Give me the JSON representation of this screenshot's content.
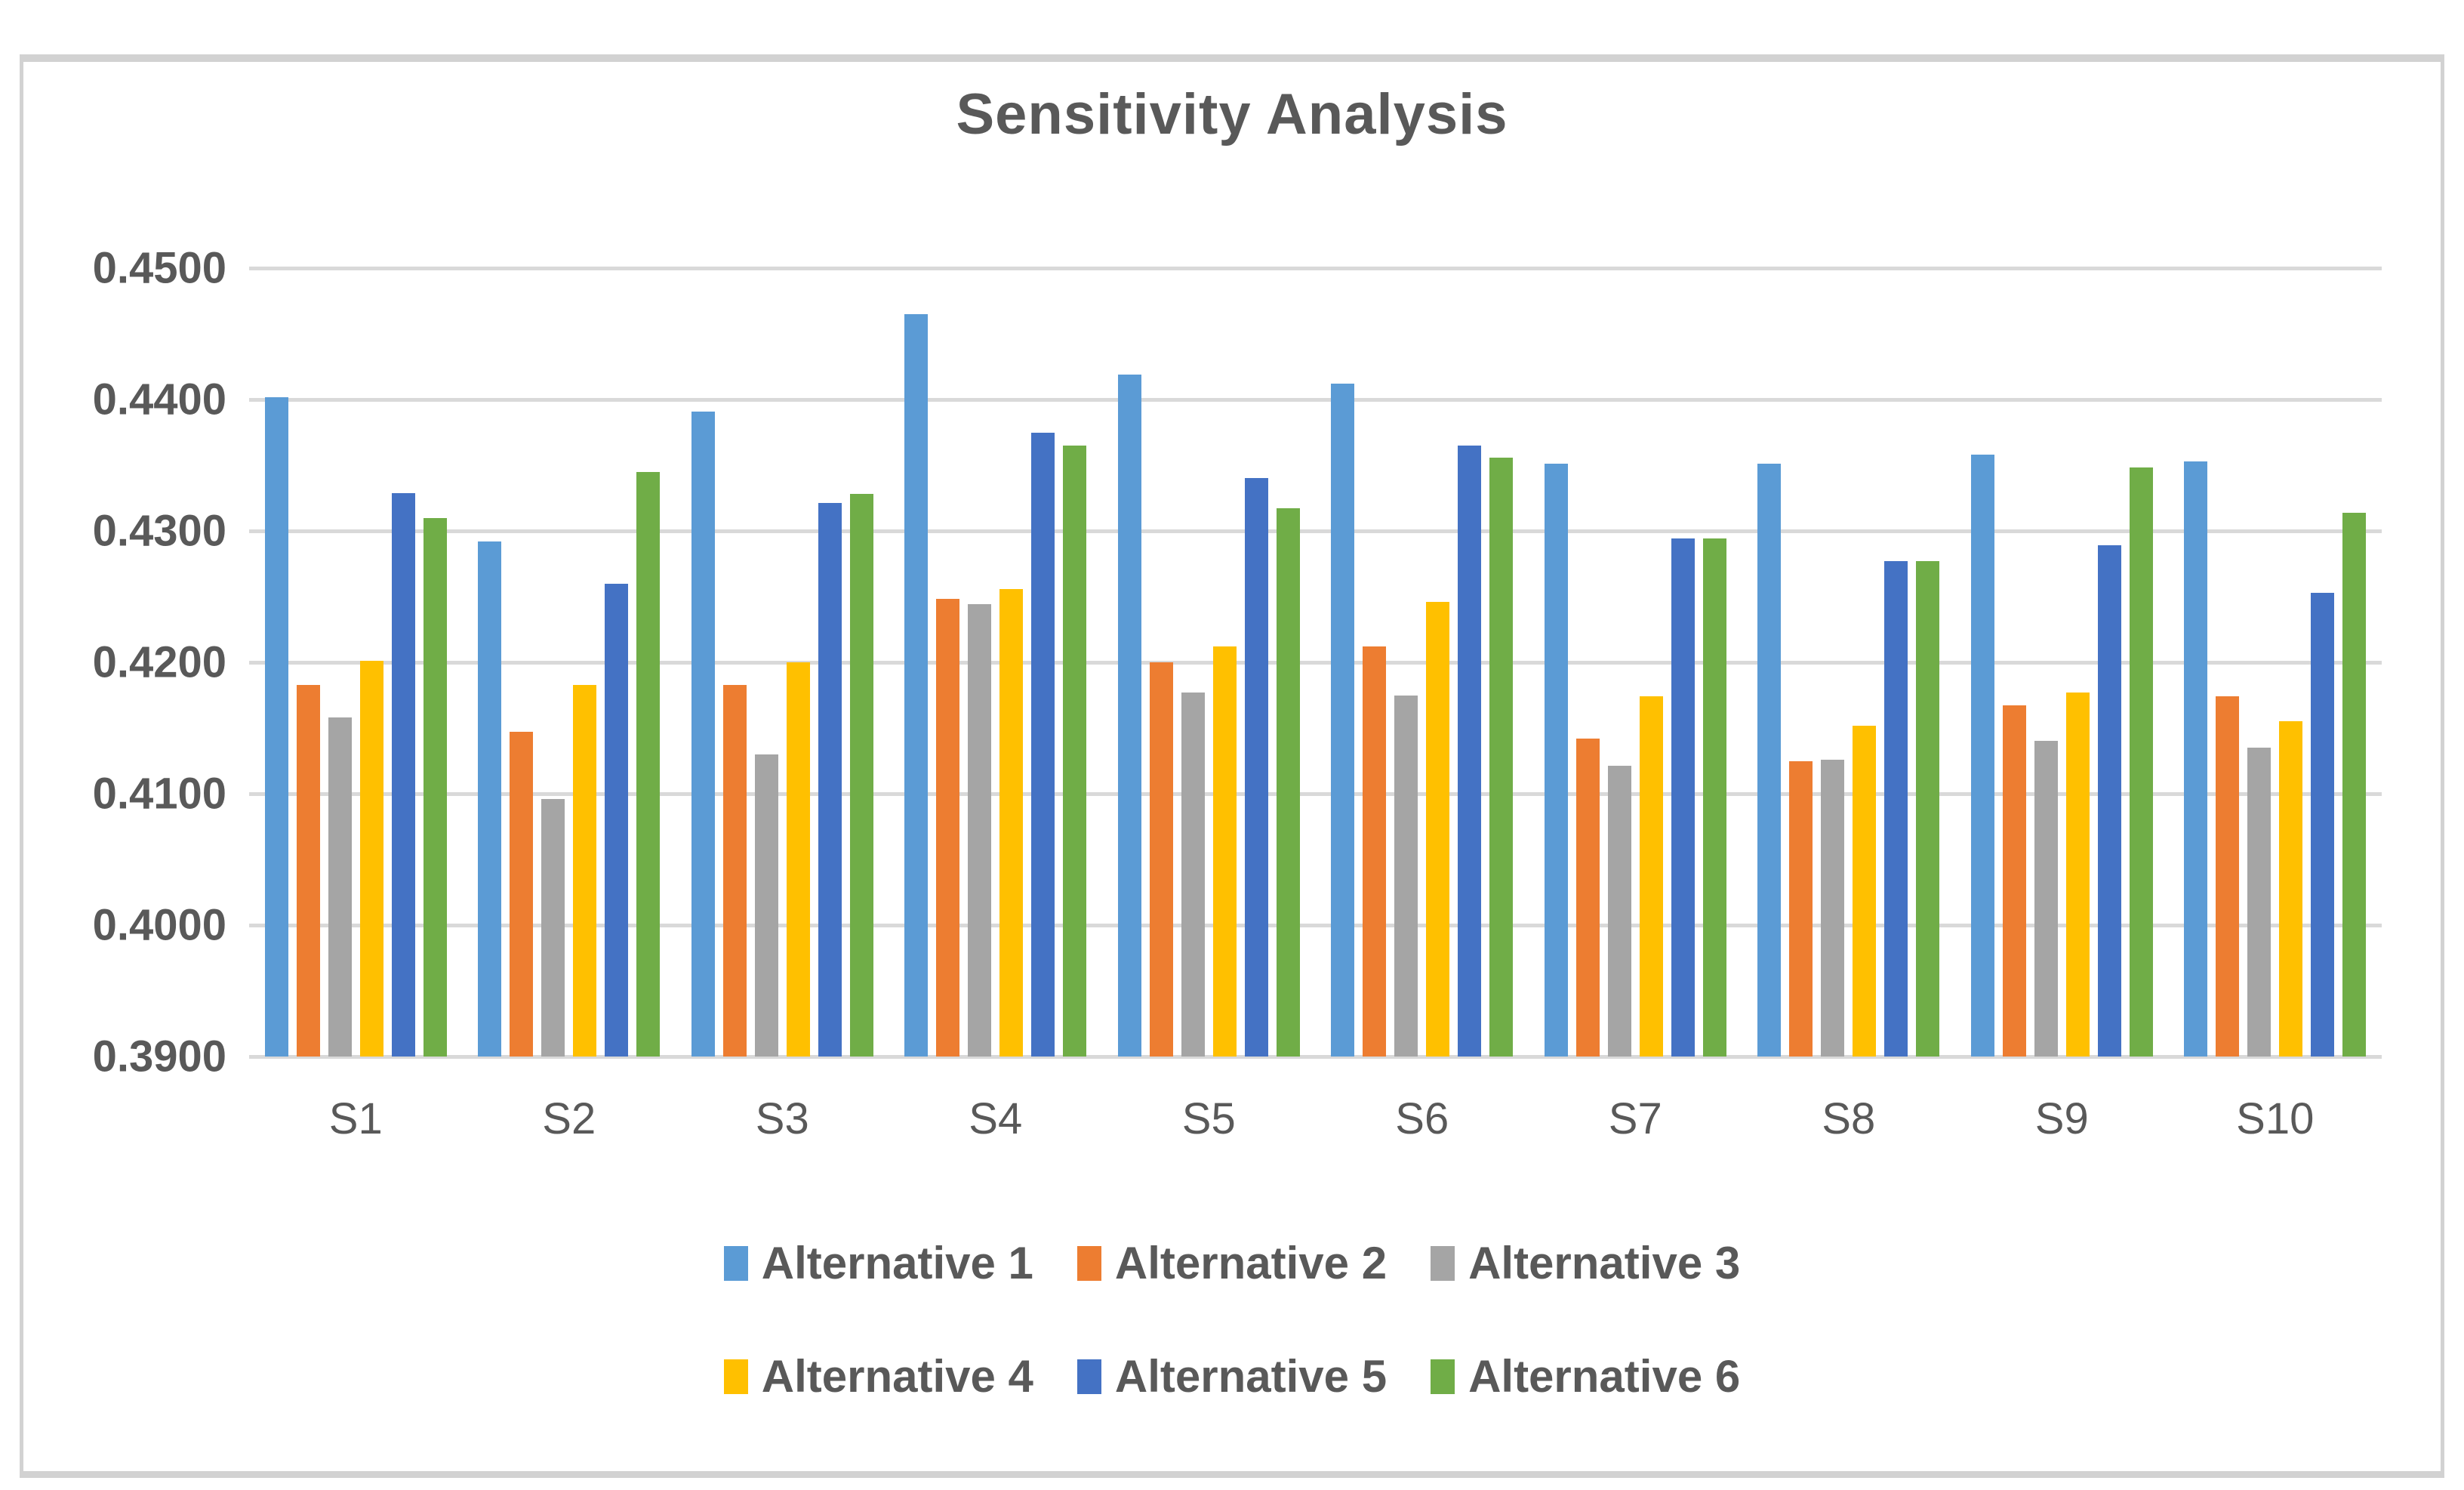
{
  "figure": {
    "title": "Sensitivity Analysis"
  },
  "chart_data": {
    "type": "bar",
    "title": "Sensitivity Analysis",
    "xlabel": "",
    "ylabel": "",
    "categories": [
      "S1",
      "S2",
      "S3",
      "S4",
      "S5",
      "S6",
      "S7",
      "S8",
      "S9",
      "S10"
    ],
    "series": [
      {
        "name": "Alternative 1",
        "color": "#5B9BD5",
        "values": [
          0.4402,
          0.4292,
          0.4391,
          0.4465,
          0.4419,
          0.4412,
          0.4351,
          0.4351,
          0.4358,
          0.4353
        ]
      },
      {
        "name": "Alternative 2",
        "color": "#ED7D31",
        "values": [
          0.4183,
          0.4147,
          0.4183,
          0.4248,
          0.42,
          0.4212,
          0.4142,
          0.4125,
          0.4167,
          0.4174
        ]
      },
      {
        "name": "Alternative 3",
        "color": "#A5A5A5",
        "values": [
          0.4158,
          0.4096,
          0.413,
          0.4244,
          0.4177,
          0.4175,
          0.4121,
          0.4126,
          0.414,
          0.4135
        ]
      },
      {
        "name": "Alternative 4",
        "color": "#FFC000",
        "values": [
          0.4201,
          0.4183,
          0.42,
          0.4256,
          0.4212,
          0.4246,
          0.4174,
          0.4152,
          0.4177,
          0.4155
        ]
      },
      {
        "name": "Alternative 5",
        "color": "#4472C4",
        "values": [
          0.4329,
          0.426,
          0.4321,
          0.4375,
          0.434,
          0.4365,
          0.4294,
          0.4277,
          0.4289,
          0.4253
        ]
      },
      {
        "name": "Alternative 6",
        "color": "#70AD47",
        "values": [
          0.431,
          0.4345,
          0.4328,
          0.4365,
          0.4317,
          0.4356,
          0.4294,
          0.4277,
          0.4348,
          0.4314
        ]
      }
    ],
    "ylim": [
      0.39,
      0.45
    ],
    "ytick_step": 0.01,
    "ytick_labels_top_to_bottom": [
      "0.4500",
      "0.4400",
      "0.4300",
      "0.4200",
      "0.4100",
      "0.4000",
      "0.3900"
    ],
    "grid": true,
    "legend_position": "bottom",
    "legend_rows": [
      [
        0,
        1,
        2
      ],
      [
        3,
        4,
        5
      ]
    ]
  },
  "colors": {
    "text": "#595959",
    "gridline": "#D9D9D9",
    "frame_border": "#D2D2D2",
    "background": "#FFFFFF"
  }
}
